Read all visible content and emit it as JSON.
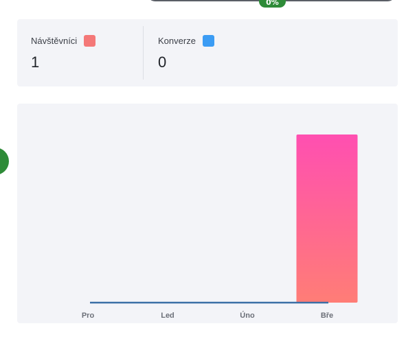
{
  "top_badge": "0%",
  "stats": [
    {
      "label": "Návštěvníci",
      "value": "1",
      "color": "#f47878"
    },
    {
      "label": "Konverze",
      "value": "0",
      "color": "#3b9cf4"
    }
  ],
  "colors": {
    "accent_green": "#2e8b38",
    "card_bg": "#f3f4f8",
    "line": "#3a6fa6",
    "bar_top": "#ff4fb1",
    "bar_bottom": "#ff7d76"
  },
  "chart_data": {
    "type": "bar",
    "categories": [
      "Pro",
      "Led",
      "Úno",
      "Bře"
    ],
    "series": [
      {
        "values": [
          0,
          0,
          0,
          1
        ]
      },
      {
        "values": [
          0,
          0,
          0,
          0
        ]
      }
    ],
    "ylim": [
      0,
      1
    ],
    "grid": false,
    "legend": "none"
  }
}
